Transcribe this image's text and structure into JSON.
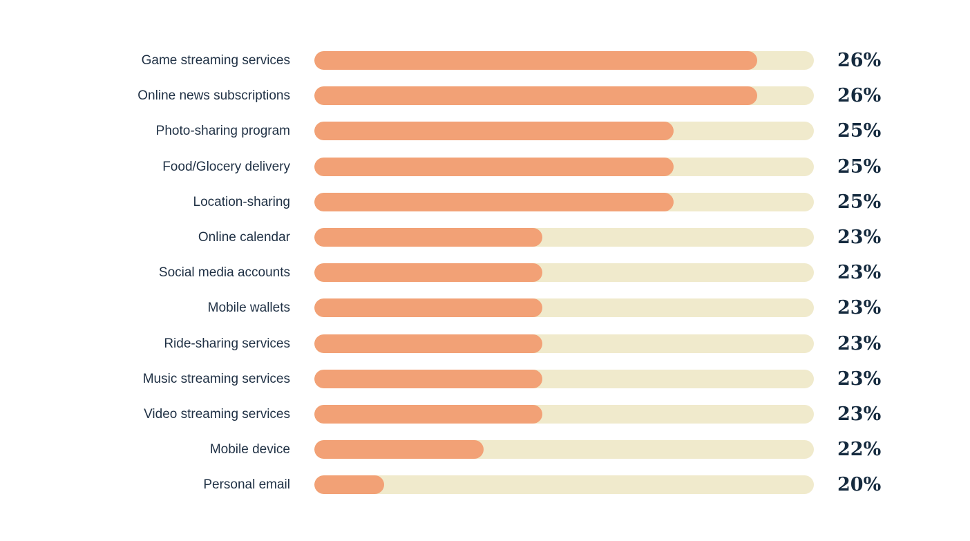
{
  "colors": {
    "background": "#ffffff",
    "bar_fill": "#F2A176",
    "bar_track": "#F0EACC",
    "label_text": "#1F3044",
    "value_text": "#152A3E"
  },
  "chart_data": {
    "type": "bar",
    "orientation": "horizontal",
    "title": "",
    "xlabel": "",
    "ylabel": "",
    "grid": false,
    "legend": null,
    "categories": [
      "Game streaming services",
      "Online news subscriptions",
      "Photo-sharing program",
      "Food/Glocery delivery",
      "Location-sharing",
      "Online calendar",
      "Social media accounts",
      "Mobile wallets",
      "Ride-sharing services",
      "Music streaming services",
      "Video streaming services",
      "Mobile device",
      "Personal email"
    ],
    "values": [
      26,
      26,
      25,
      25,
      25,
      23,
      23,
      23,
      23,
      23,
      23,
      22,
      20
    ],
    "value_labels": [
      "26%",
      "26%",
      "25%",
      "25%",
      "25%",
      "23%",
      "23%",
      "23%",
      "23%",
      "23%",
      "23%",
      "22%",
      "20%"
    ],
    "bar_fill_pct_of_track": [
      88.6,
      88.6,
      71.9,
      71.9,
      71.9,
      45.6,
      45.6,
      45.6,
      45.6,
      45.6,
      45.6,
      33.9,
      14.0
    ],
    "track_pct": 100
  }
}
